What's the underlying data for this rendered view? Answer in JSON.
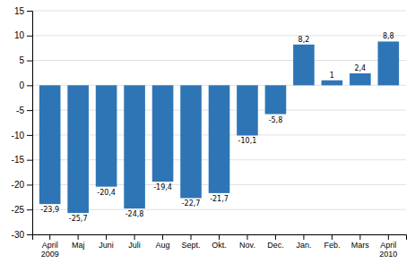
{
  "chart_data": {
    "type": "bar",
    "categories": [
      "April\n2009",
      "Maj",
      "Juni",
      "Juli",
      "Aug",
      "Sept.",
      "Okt.",
      "Nov.",
      "Dec.",
      "Jan.",
      "Feb.",
      "Mars",
      "April\n2010"
    ],
    "values": [
      -23.9,
      -25.7,
      -20.4,
      -24.8,
      -19.4,
      -22.7,
      -21.7,
      -10.1,
      -5.8,
      8.2,
      1.0,
      2.4,
      8.8
    ],
    "value_labels": [
      "-23,9",
      "-25,7",
      "-20,4",
      "-24,8",
      "-19,4",
      "-22,7",
      "-21,7",
      "-10,1",
      "-5,8",
      "8,2",
      "1",
      "2,4",
      "8,8"
    ],
    "data_labels": true,
    "color": "#2e75b6",
    "ylim": [
      -30,
      15
    ],
    "yticks": [
      -30,
      -25,
      -20,
      -15,
      -10,
      -5,
      0,
      5,
      10,
      15
    ],
    "grid": true
  }
}
